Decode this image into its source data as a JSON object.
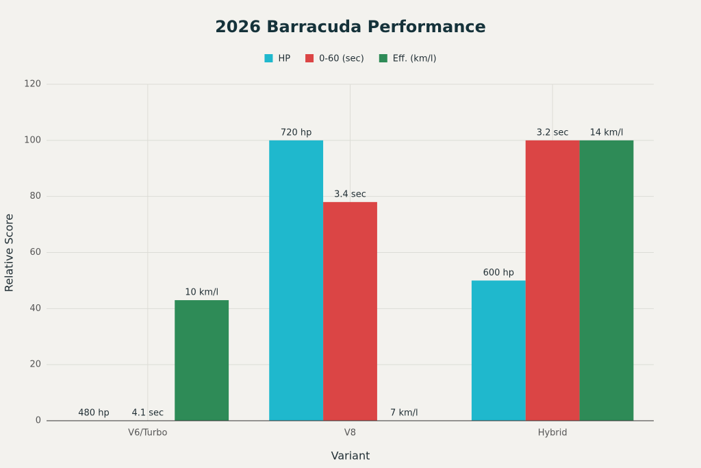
{
  "chart_data": {
    "type": "bar",
    "title": "2026 Barracuda Performance",
    "x_label": "Variant",
    "y_label": "Relative Score",
    "categories": [
      "V6/Turbo",
      "V8",
      "Hybrid"
    ],
    "series": [
      {
        "name": "HP",
        "color": "#1fb8cd",
        "values": [
          0,
          100,
          50
        ],
        "value_labels": [
          "480 hp",
          "720 hp",
          "600 hp"
        ]
      },
      {
        "name": "0-60 (sec)",
        "color": "#db4545",
        "values": [
          0,
          78,
          100
        ],
        "value_labels": [
          "4.1 sec",
          "3.4 sec",
          "3.2 sec"
        ]
      },
      {
        "name": "Eff. (km/l)",
        "color": "#2e8b57",
        "values": [
          43,
          0,
          100
        ],
        "value_labels": [
          "10 km/l",
          "7 km/l",
          "14 km/l"
        ]
      }
    ],
    "ylim": [
      0,
      120
    ],
    "yticks": [
      0,
      20,
      40,
      60,
      80,
      100,
      120
    ],
    "grid": true,
    "legend": "top"
  }
}
